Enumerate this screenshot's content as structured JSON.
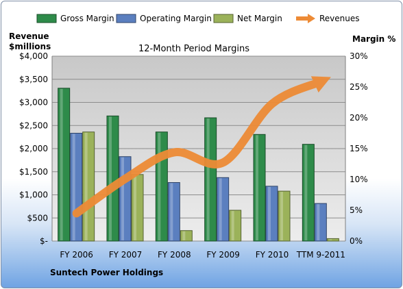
{
  "chart_data": {
    "type": "bar",
    "title": "12-Month Period Margins",
    "left_axis_title": [
      "Revenue",
      "$millions"
    ],
    "right_axis_title": "Margin %",
    "footer": "Suntech Power Holdings",
    "categories": [
      "FY 2006",
      "FY 2007",
      "FY 2008",
      "FY 2009",
      "FY 2010",
      "TTM 9-2011"
    ],
    "left_ticks": [
      "$-",
      "$500",
      "$1,000",
      "$1,500",
      "$2,000",
      "$2,500",
      "$3,000",
      "$3,500",
      "$4,000"
    ],
    "right_ticks": [
      "0%",
      "5%",
      "10%",
      "15%",
      "20%",
      "25%",
      "30%"
    ],
    "ylim_left": [
      0,
      4000
    ],
    "ylim_right": [
      0,
      30
    ],
    "series": [
      {
        "name": "Gross Margin",
        "axis": "right",
        "color": "#2e8b4a",
        "values": [
          24.8,
          20.3,
          17.7,
          20.0,
          17.3,
          15.7
        ]
      },
      {
        "name": "Operating Margin",
        "axis": "right",
        "color": "#5b7fbf",
        "values": [
          17.5,
          13.7,
          9.5,
          10.3,
          8.9,
          6.1
        ]
      },
      {
        "name": "Net Margin",
        "axis": "right",
        "color": "#9bb25a",
        "values": [
          17.7,
          10.8,
          1.7,
          5.0,
          8.1,
          0.4
        ]
      },
      {
        "name": "Revenues",
        "axis": "left",
        "color": "#ed8b36",
        "type": "line",
        "values": [
          600,
          1350,
          1920,
          1700,
          2970,
          3450
        ]
      }
    ],
    "grid": true,
    "legend_position": "top"
  }
}
